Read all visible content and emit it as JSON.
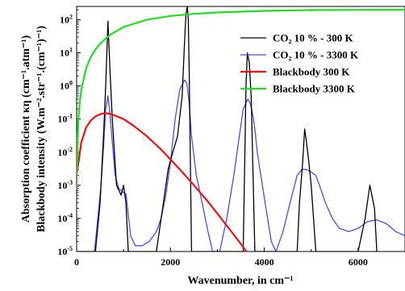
{
  "chart_data": {
    "type": "line",
    "xlabel": "Wavenumber, in cm⁻¹",
    "ylabel_line1": "Absorption coefficient κη (cm⁻¹.atm⁻¹)",
    "ylabel_line2": "Blackbody intensity (W.m⁻².str⁻¹.(cm⁻¹)⁻¹)",
    "xlim": [
      0,
      7000
    ],
    "ylim_log10": [
      -5,
      2.4
    ],
    "y_scale": "log",
    "x_ticks": [
      {
        "value": 0,
        "label": "0"
      },
      {
        "value": 2000,
        "label": "2000"
      },
      {
        "value": 4000,
        "label": "4000"
      },
      {
        "value": 6000,
        "label": "6000"
      }
    ],
    "y_ticks": [
      {
        "exp": 2,
        "base": "10",
        "sup": "2"
      },
      {
        "exp": 1,
        "base": "10",
        "sup": "1"
      },
      {
        "exp": 0,
        "base": "10",
        "sup": "0"
      },
      {
        "exp": -1,
        "base": "10",
        "sup": "-1"
      },
      {
        "exp": -2,
        "base": "10",
        "sup": "-2"
      },
      {
        "exp": -3,
        "base": "10",
        "sup": "-3"
      },
      {
        "exp": -4,
        "base": "10",
        "sup": "-4"
      },
      {
        "exp": -5,
        "base": "10",
        "sup": "-5"
      }
    ],
    "legend_position": "top-right",
    "series": [
      {
        "name": "CO₂ 10 % - 300 K",
        "color": "#000000",
        "x": [
          0,
          400,
          500,
          580,
          620,
          667,
          710,
          760,
          850,
          950,
          1000,
          1050,
          1100,
          1700,
          1850,
          1950,
          2050,
          2150,
          2250,
          2300,
          2330,
          2360,
          2380,
          2400,
          2450,
          3550,
          3580,
          3610,
          3640,
          3680,
          3720,
          3750,
          3800,
          4700,
          4750,
          4820,
          4860,
          4900,
          4950,
          5000,
          5050,
          5100,
          6000,
          6150,
          6250,
          6350,
          6400
        ],
        "y": [
          1e-05,
          1e-05,
          0.0003,
          0.05,
          1,
          90,
          3,
          0.1,
          0.001,
          0.0005,
          0.001,
          0.0003,
          1e-05,
          1e-05,
          0.0003,
          0.003,
          0.01,
          0.03,
          0.5,
          20,
          150,
          250,
          100,
          3,
          1e-05,
          1e-05,
          0.003,
          1,
          10,
          5,
          0.5,
          0.01,
          1e-05,
          1e-05,
          0.0003,
          0.005,
          0.05,
          0.02,
          0.005,
          0.001,
          0.0001,
          1e-05,
          1e-05,
          0.0001,
          0.001,
          0.0002,
          1e-05
        ]
      },
      {
        "name": "CO₂ 10 % - 3300 K",
        "color": "#4b4bff",
        "x": [
          380,
          450,
          520,
          580,
          620,
          667,
          700,
          760,
          820,
          900,
          950,
          1000,
          1050,
          1150,
          1250,
          1400,
          1550,
          1700,
          1800,
          1900,
          2000,
          2100,
          2200,
          2300,
          2350,
          2400,
          2450,
          2550,
          2700,
          2800,
          2900,
          3050,
          3200,
          3350,
          3450,
          3550,
          3650,
          3700,
          3750,
          3800,
          3850,
          3950,
          4050,
          4150,
          4250,
          4400,
          4550,
          4700,
          4800,
          4900,
          5000,
          5100,
          5200,
          5300,
          5450,
          5600,
          5800,
          6000,
          6200,
          6400,
          6600,
          6800,
          7000
        ],
        "y": [
          1e-05,
          0.0001,
          0.001,
          0.02,
          0.2,
          0.5,
          0.2,
          0.02,
          0.002,
          0.0008,
          0.0007,
          0.0006,
          0.00055,
          3e-05,
          1.5e-05,
          1.5e-05,
          2e-05,
          4e-05,
          0.0001,
          0.0005,
          0.005,
          0.1,
          0.8,
          1.5,
          1.2,
          0.3,
          0.03,
          0.002,
          0.0002,
          4e-05,
          1e-05,
          1e-05,
          0.0001,
          0.002,
          0.02,
          0.2,
          0.4,
          0.3,
          0.15,
          0.05,
          0.01,
          0.0012,
          0.00015,
          2e-05,
          1e-05,
          4e-05,
          0.0003,
          0.002,
          0.003,
          0.003,
          0.0025,
          0.002,
          0.0008,
          0.0003,
          0.0001,
          5e-05,
          4e-05,
          5e-05,
          8e-05,
          9e-05,
          7e-05,
          4e-05,
          3e-05
        ]
      },
      {
        "name": "Blackbody 300 K",
        "color": "#ee1111",
        "x": [
          0,
          100,
          200,
          300,
          400,
          500,
          600,
          700,
          800,
          1000,
          1200,
          1500,
          1800,
          2000,
          2200,
          2500,
          2800,
          3000,
          3200,
          3500,
          3700,
          3800
        ],
        "y": [
          0.002,
          0.02,
          0.055,
          0.09,
          0.12,
          0.14,
          0.15,
          0.145,
          0.13,
          0.1,
          0.065,
          0.03,
          0.012,
          0.006,
          0.003,
          0.001,
          0.00032,
          0.00014,
          6e-05,
          1.7e-05,
          7e-06,
          4.5e-06
        ]
      },
      {
        "name": "Blackbody 3300 K",
        "color": "#22dd22",
        "x": [
          0,
          20,
          50,
          100,
          200,
          300,
          400,
          500,
          700,
          1000,
          1500,
          2000,
          2500,
          3000,
          4000,
          5000,
          6000,
          7000
        ],
        "y": [
          0.0008,
          0.03,
          0.2,
          0.8,
          3.3,
          7.3,
          12.5,
          19,
          34,
          60,
          100,
          130,
          150,
          165,
          185,
          195,
          198,
          200
        ]
      }
    ]
  }
}
